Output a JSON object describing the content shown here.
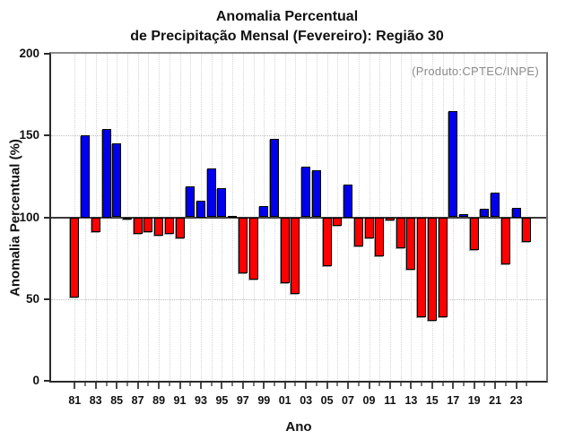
{
  "title": {
    "line1": "Anomalia Percentual",
    "line2": "de Precipitação Mensal (Fevereiro): Região 30"
  },
  "annotation": "(Produto:CPTEC/INPE)",
  "annotation_color": "#8a8a8a",
  "chart_data": {
    "type": "bar",
    "title": "Anomalia Percentual de Precipitação Mensal (Fevereiro): Região 30",
    "xlabel": "Ano",
    "ylabel": "Anomalia Percentual (%)",
    "ylim": [
      0,
      200
    ],
    "yticks": [
      0,
      50,
      100,
      150,
      200
    ],
    "baseline": 100,
    "grid": "dotted",
    "legend": null,
    "x_tick_rule": "tick every year, two-digit labels on odd years",
    "years": [
      1981,
      1982,
      1983,
      1984,
      1985,
      1986,
      1987,
      1988,
      1989,
      1990,
      1991,
      1992,
      1993,
      1994,
      1995,
      1996,
      1997,
      1998,
      1999,
      2000,
      2001,
      2002,
      2003,
      2004,
      2005,
      2006,
      2007,
      2008,
      2009,
      2010,
      2011,
      2012,
      2013,
      2014,
      2015,
      2016,
      2017,
      2018,
      2019,
      2020,
      2021,
      2022,
      2023,
      2024
    ],
    "values": [
      51,
      150,
      91,
      154,
      145,
      100,
      90,
      91,
      89,
      90,
      87,
      119,
      110,
      130,
      118,
      101,
      66,
      62,
      107,
      148,
      60,
      53,
      131,
      129,
      70,
      95,
      120,
      82,
      87,
      76,
      98,
      81,
      68,
      39,
      37,
      39,
      165,
      102,
      80,
      105,
      115,
      71,
      106,
      85
    ],
    "bar_colors": {
      "above_baseline": "#0000EE",
      "below_baseline": "#FF0000"
    }
  }
}
